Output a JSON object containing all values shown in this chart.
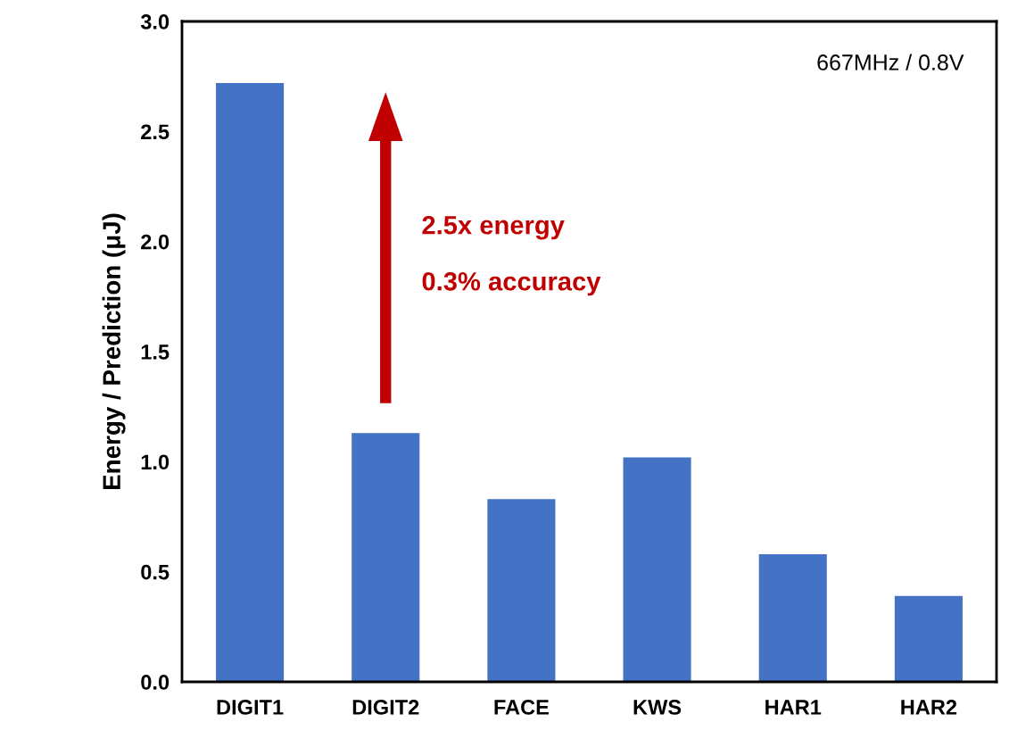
{
  "chart_data": {
    "type": "bar",
    "ylabel": "Energy / Prediction (μJ)",
    "categories": [
      "DIGIT1",
      "DIGIT2",
      "FACE",
      "KWS",
      "HAR1",
      "HAR2"
    ],
    "values": [
      2.72,
      1.13,
      0.83,
      1.02,
      0.58,
      0.39
    ],
    "color": "#4472c4",
    "ylim": [
      0,
      3.0
    ],
    "yticks": [
      {
        "value": 0,
        "label": "0.0"
      },
      {
        "value": 0.5,
        "label": "0.5"
      },
      {
        "value": 1,
        "label": "1.0"
      },
      {
        "value": 1.5,
        "label": "1.5"
      },
      {
        "value": 2,
        "label": "2.0"
      },
      {
        "value": 2.5,
        "label": "2.5"
      },
      {
        "value": 3,
        "label": "3.0"
      }
    ],
    "grid": false,
    "legend": false,
    "annotations": [
      "667MHz / 0.8V",
      "2.5x energy",
      "0.3% accuracy"
    ]
  }
}
